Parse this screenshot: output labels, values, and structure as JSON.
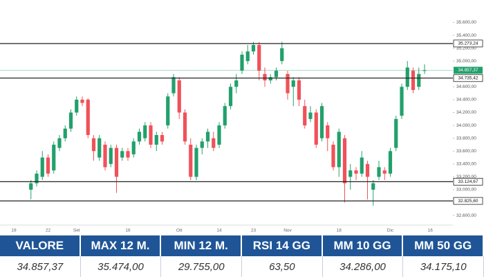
{
  "chart_data": {
    "type": "candlestick",
    "categories": [
      "19",
      null,
      null,
      null,
      null,
      null,
      "22",
      null,
      null,
      null,
      null,
      "Set",
      null,
      null,
      null,
      null,
      null,
      null,
      null,
      null,
      "16",
      null,
      null,
      null,
      null,
      null,
      null,
      null,
      null,
      "Ott",
      null,
      null,
      null,
      null,
      null,
      null,
      "14",
      null,
      null,
      null,
      null,
      null,
      "23",
      null,
      null,
      null,
      null,
      null,
      "Nov",
      null,
      null,
      null,
      null,
      null,
      null,
      null,
      null,
      "18",
      null,
      null,
      null,
      null,
      null,
      null,
      null,
      null,
      "Dic",
      null,
      null,
      null,
      null,
      null,
      null,
      "16"
    ],
    "open": [
      null,
      null,
      null,
      33000,
      33100,
      33200,
      33500,
      33300,
      33650,
      33800,
      33950,
      34200,
      34400,
      34400,
      33800,
      33500,
      33700,
      33400,
      33650,
      33500,
      33600,
      33550,
      33750,
      33800,
      34000,
      33700,
      33850,
      34000,
      34500,
      34700,
      34200,
      33700,
      33200,
      33650,
      33750,
      33800,
      33700,
      34000,
      34300,
      34600,
      34850,
      35000,
      35150,
      35250,
      34800,
      34700,
      34750,
      35000,
      34800,
      34600,
      34700,
      34300,
      34100,
      34200,
      33800,
      34000,
      33700,
      33350,
      33800,
      33200,
      33300,
      33250,
      33400,
      33000,
      33200,
      33300,
      33250,
      33650,
      34150,
      34600,
      34850,
      34600,
      34850,
      null
    ],
    "high": [
      null,
      null,
      null,
      33150,
      33300,
      33600,
      33550,
      33750,
      33850,
      34000,
      34250,
      34450,
      34450,
      34420,
      33850,
      33850,
      33750,
      33700,
      33700,
      33650,
      33650,
      33800,
      33950,
      34050,
      34050,
      33900,
      33900,
      34500,
      34800,
      34750,
      34250,
      33800,
      33700,
      33800,
      33950,
      33900,
      34050,
      34350,
      34650,
      34800,
      35150,
      35250,
      35300,
      35300,
      34900,
      34800,
      34900,
      35300,
      34850,
      34750,
      34750,
      34400,
      34300,
      34250,
      34350,
      34050,
      33750,
      33950,
      33850,
      33400,
      33350,
      33600,
      33450,
      33150,
      33450,
      33350,
      33650,
      34150,
      34650,
      35000,
      34900,
      34900,
      34950,
      null
    ],
    "low": [
      null,
      null,
      null,
      32850,
      33050,
      33150,
      33200,
      33250,
      33600,
      33750,
      33900,
      34150,
      34300,
      33800,
      33450,
      33450,
      33300,
      33350,
      32950,
      33450,
      33450,
      33500,
      33700,
      33750,
      33650,
      33600,
      33700,
      33950,
      34450,
      34100,
      33700,
      33150,
      33150,
      33550,
      33650,
      33600,
      33650,
      33950,
      34250,
      34500,
      34800,
      34950,
      35100,
      34700,
      34600,
      34650,
      34700,
      34950,
      34400,
      34300,
      34300,
      33950,
      34050,
      33650,
      33750,
      33600,
      33300,
      33200,
      32800,
      33000,
      33150,
      33200,
      32850,
      32750,
      33150,
      33150,
      33200,
      33600,
      34100,
      34550,
      34500,
      34550,
      34800,
      null
    ],
    "close": [
      null,
      null,
      null,
      33100,
      33250,
      33500,
      33250,
      33700,
      33800,
      33950,
      34200,
      34400,
      34350,
      33850,
      33600,
      33800,
      33350,
      33650,
      33200,
      33600,
      33500,
      33750,
      33900,
      34000,
      33700,
      33850,
      33750,
      34450,
      34750,
      34200,
      33750,
      33200,
      33650,
      33750,
      33900,
      33650,
      34000,
      34300,
      34600,
      34700,
      35100,
      35150,
      35250,
      34850,
      34700,
      34750,
      34850,
      35200,
      34500,
      34700,
      34400,
      34000,
      34200,
      33700,
      34300,
      33800,
      33350,
      33900,
      33100,
      33300,
      33250,
      33500,
      33200,
      33100,
      33350,
      33250,
      33600,
      34100,
      34600,
      34900,
      34550,
      34800,
      34857.37,
      null
    ],
    "up_color": "#22a06b",
    "down_color": "#f0515a",
    "ylim": [
      32450,
      35950
    ],
    "yticks": [
      {
        "value": 32600,
        "label": "32.600,00"
      },
      {
        "value": 32800,
        "label": "32.800,00"
      },
      {
        "value": 33000,
        "label": "33.000,00"
      },
      {
        "value": 33200,
        "label": "33.200,00"
      },
      {
        "value": 33400,
        "label": "33.400,00"
      },
      {
        "value": 33600,
        "label": "33.600,00"
      },
      {
        "value": 33800,
        "label": "33.800,00"
      },
      {
        "value": 34000,
        "label": "34.000,00"
      },
      {
        "value": 34200,
        "label": "34.200,00"
      },
      {
        "value": 34400,
        "label": "34.400,00"
      },
      {
        "value": 34600,
        "label": "34.600,00"
      },
      {
        "value": 35000,
        "label": "35.000,00"
      },
      {
        "value": 35200,
        "label": "35.200,00"
      },
      {
        "value": 35400,
        "label": "35.400,00"
      },
      {
        "value": 35600,
        "label": "35.600,00"
      }
    ],
    "levels": [
      {
        "value": 35273.24,
        "label": "35.273,24"
      },
      {
        "value": 34735.42,
        "label": "34.735,42"
      },
      {
        "value": 33124.67,
        "label": "33.124,67"
      },
      {
        "value": 32825.6,
        "label": "32.825,60"
      }
    ],
    "last_price": {
      "value": 34857.37,
      "label": "34.857,37"
    }
  },
  "table": {
    "headers": [
      "VALORE",
      "MAX 12 M.",
      "MIN 12 M.",
      "RSI 14 GG",
      "MM 10 GG",
      "MM 50 GG"
    ],
    "values": [
      "34.857,37",
      "35.474,00",
      "29.755,00",
      "63,50",
      "34.286,00",
      "34.175,10"
    ]
  }
}
